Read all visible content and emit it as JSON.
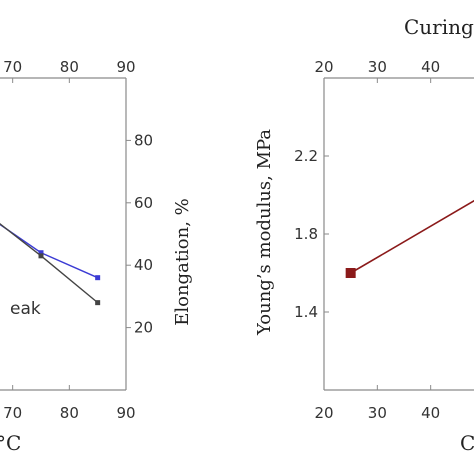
{
  "colors": {
    "axis": "#8a8a8a",
    "blue_series": "#3b3bd4",
    "black_series": "#444444",
    "red_series": "#8b1a1a"
  },
  "chart_data": [
    {
      "type": "line",
      "panel": "left",
      "xlim": [
        60,
        90
      ],
      "xticks": [
        70,
        80,
        90
      ],
      "y2lim": [
        0,
        100
      ],
      "y2ticks": [
        20,
        40,
        60,
        80
      ],
      "y2label": "Elongation, %",
      "xlabel_fragment": "°C",
      "legend_fragment": "eak",
      "series": [
        {
          "x": [
            63,
            75,
            85
          ],
          "values": [
            59,
            44,
            36
          ]
        },
        {
          "x": [
            63,
            75,
            85
          ],
          "values": [
            60,
            43,
            28
          ]
        }
      ]
    },
    {
      "type": "line",
      "panel": "right",
      "top_axis_label": "Curing",
      "xlim": [
        20,
        50
      ],
      "xticks": [
        20,
        30,
        40
      ],
      "ylim": [
        1.0,
        2.6
      ],
      "yticks": [
        1.4,
        1.8,
        2.2
      ],
      "ylabel": "Young’s modulus, MPa",
      "xlabel_fragment": "C",
      "series": [
        {
          "x": [
            25,
            50
          ],
          "values": [
            1.6,
            2.0
          ]
        }
      ]
    }
  ]
}
